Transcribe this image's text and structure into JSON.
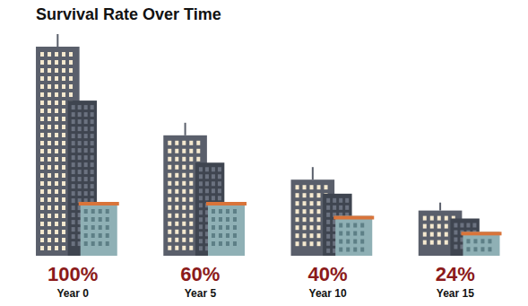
{
  "chart_data": {
    "type": "bar",
    "title": "Survival Rate Over Time",
    "categories": [
      "Year 0",
      "Year 5",
      "Year 10",
      "Year 15"
    ],
    "values": [
      100,
      60,
      40,
      24
    ],
    "value_labels": [
      "100%",
      "60%",
      "40%",
      "24%"
    ],
    "data_labels": true,
    "tick_labels": "x",
    "ylim": [
      0,
      100
    ],
    "color": "#5a5f6b"
  }
}
